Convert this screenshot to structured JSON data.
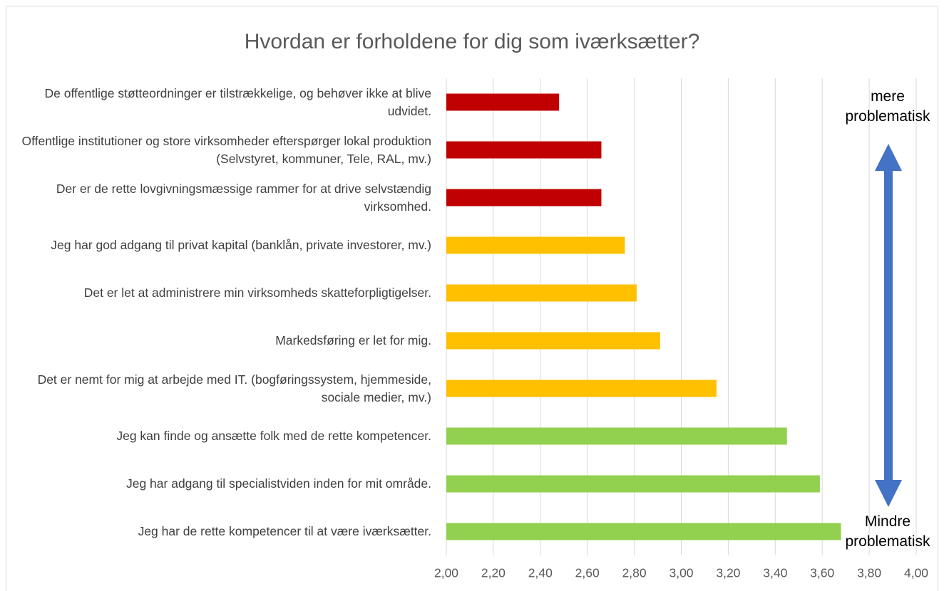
{
  "chart_data": {
    "type": "bar",
    "orientation": "horizontal",
    "title": "Hvordan er forholdene for dig som iværksætter?",
    "categories": [
      "De offentlige støtteordninger er tilstrækkelige, og behøver ikke at blive udvidet.",
      "Offentlige institutioner og store virksomheder efterspørger lokal produktion (Selvstyret, kommuner, Tele, RAL, mv.)",
      "Der er de rette lovgivningsmæssige rammer for at drive selvstændig virksomhed.",
      "Jeg har god adgang til privat kapital (banklån, private investorer, mv.)",
      "Det er let at administrere min virksomheds skatteforpligtigelser.",
      "Markedsføring er let for mig.",
      "Det er nemt for mig at arbejde med IT. (bogføringssystem, hjemmeside, sociale medier, mv.)",
      "Jeg kan finde og ansætte folk med de rette kompetencer.",
      "Jeg har adgang til specialistviden inden for mit område.",
      "Jeg har de rette kompetencer til at være iværksætter."
    ],
    "values": [
      2.48,
      2.66,
      2.66,
      2.76,
      2.81,
      2.91,
      3.15,
      3.45,
      3.59,
      3.68
    ],
    "colors": [
      "#c00000",
      "#c00000",
      "#c00000",
      "#ffc000",
      "#ffc000",
      "#ffc000",
      "#ffc000",
      "#92d050",
      "#92d050",
      "#92d050"
    ],
    "xlim": [
      2.0,
      4.0
    ],
    "xticks": [
      {
        "value": 2.0,
        "label": "2,00"
      },
      {
        "value": 2.2,
        "label": "2,20"
      },
      {
        "value": 2.4,
        "label": "2,40"
      },
      {
        "value": 2.6,
        "label": "2,60"
      },
      {
        "value": 2.8,
        "label": "2,80"
      },
      {
        "value": 3.0,
        "label": "3,00"
      },
      {
        "value": 3.2,
        "label": "3,20"
      },
      {
        "value": 3.4,
        "label": "3,40"
      },
      {
        "value": 3.6,
        "label": "3,60"
      },
      {
        "value": 3.8,
        "label": "3,80"
      },
      {
        "value": 4.0,
        "label": "4,00"
      }
    ],
    "grid": true,
    "annotations": [
      [
        "mere",
        "problematisk"
      ],
      [
        "Mindre",
        "problematisk"
      ]
    ]
  }
}
